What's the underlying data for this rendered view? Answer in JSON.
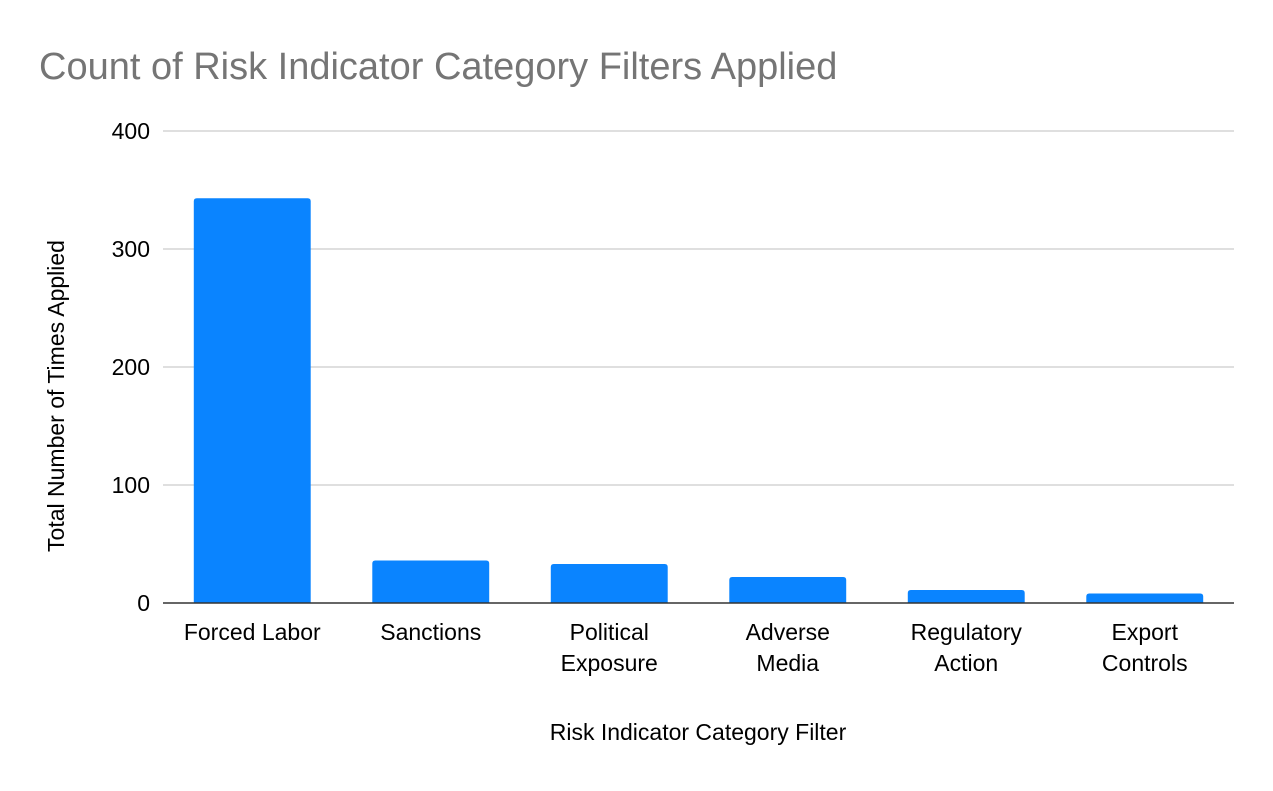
{
  "chart_data": {
    "type": "bar",
    "title": "Count of Risk Indicator Category Filters Applied",
    "xlabel": "Risk Indicator Category Filter",
    "ylabel": "Total Number of Times Applied",
    "categories": [
      [
        "Forced Labor"
      ],
      [
        "Sanctions"
      ],
      [
        "Political",
        "Exposure"
      ],
      [
        "Adverse",
        "Media"
      ],
      [
        "Regulatory",
        "Action"
      ],
      [
        "Export",
        "Controls"
      ]
    ],
    "values": [
      343,
      36,
      33,
      22,
      11,
      8
    ],
    "ylim": [
      0,
      400
    ],
    "yticks": [
      0,
      100,
      200,
      300,
      400
    ],
    "grid": true,
    "legend": "none",
    "bar_color": "#0a84ff"
  }
}
